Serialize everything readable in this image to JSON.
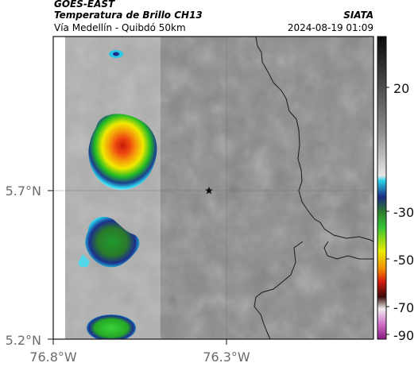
{
  "header": {
    "satellite": "GOES-EAST",
    "product": "Temperatura de Brillo CH13",
    "route": "Vía Medellín - Quibdó 50km",
    "organization": "SIATA",
    "timestamp": "2024-08-19 01:09"
  },
  "map": {
    "lat_labels": [
      "5.7°N",
      "5.2°N"
    ],
    "lon_labels": [
      "76.8°W",
      "76.3°W"
    ],
    "marker": "star-marker",
    "colors": {
      "background_gray": "#8a8a8a",
      "cold_core": "#e32a0c",
      "convection_green": "#17b017",
      "convection_yellow": "#f2ee00",
      "convection_blue": "#1d2f8c",
      "convection_cyan": "#1ec8e8",
      "boundary_line": "#1a1a1a"
    }
  },
  "colorbar": {
    "tick_labels": [
      "20",
      "-30",
      "-50",
      "-70",
      "-90"
    ]
  }
}
